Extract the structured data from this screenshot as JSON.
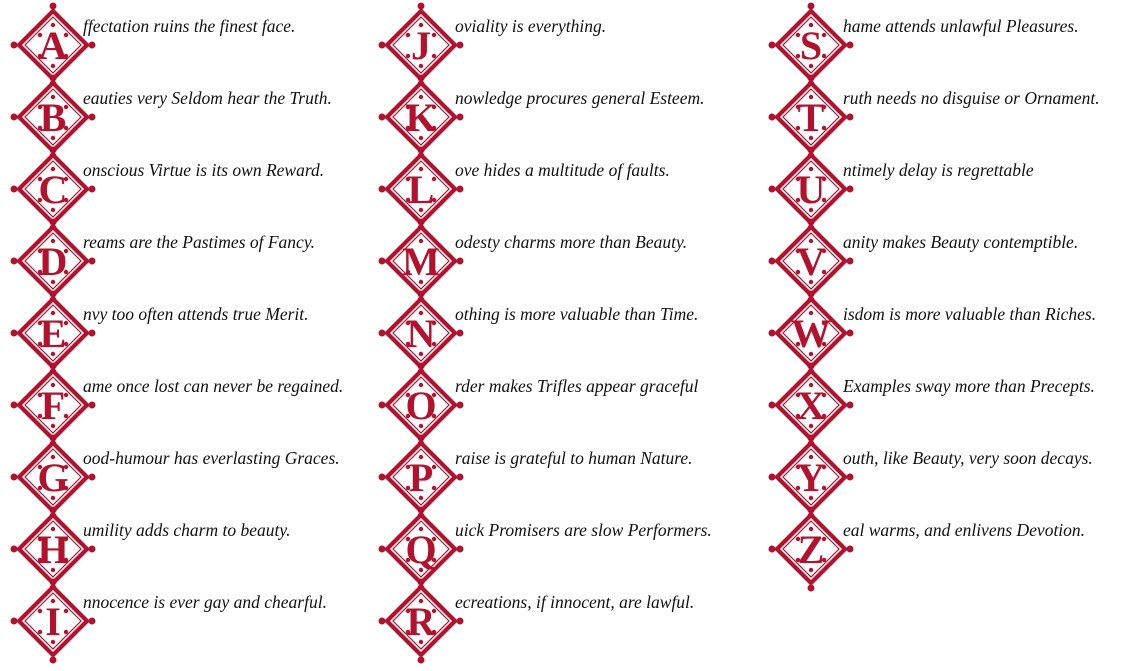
{
  "columns": [
    {
      "entries": [
        {
          "initial": "A",
          "text": "ffectation ruins the finest face."
        },
        {
          "initial": "B",
          "text": "eauties very Seldom hear the Truth."
        },
        {
          "initial": "C",
          "text": "onscious Virtue is its own Reward."
        },
        {
          "initial": "D",
          "text": "reams are the Pastimes of Fancy."
        },
        {
          "initial": "E",
          "text": "nvy too often attends true Merit."
        },
        {
          "initial": "F",
          "text": "ame once lost can never be regained."
        },
        {
          "initial": "G",
          "text": "ood-humour has everlasting Graces."
        },
        {
          "initial": "H",
          "text": "umility adds charm to beauty."
        },
        {
          "initial": "I",
          "text": "nnocence is ever gay and chearful."
        }
      ]
    },
    {
      "entries": [
        {
          "initial": "J",
          "text": "oviality is everything."
        },
        {
          "initial": "K",
          "text": "nowledge procures general Esteem."
        },
        {
          "initial": "L",
          "text": "ove hides a multitude of faults."
        },
        {
          "initial": "M",
          "text": "odesty charms more than Beauty."
        },
        {
          "initial": "N",
          "text": "othing is more valuable than Time."
        },
        {
          "initial": "O",
          "text": "rder makes Trifles appear graceful"
        },
        {
          "initial": "P",
          "text": "raise is grateful to human Nature."
        },
        {
          "initial": "Q",
          "text": "uick Promisers are slow Performers."
        },
        {
          "initial": "R",
          "text": "ecreations, if innocent, are lawful."
        }
      ]
    },
    {
      "entries": [
        {
          "initial": "S",
          "text": "hame attends unlawful Pleasures."
        },
        {
          "initial": "T",
          "text": "ruth needs no disguise or Ornament."
        },
        {
          "initial": "U",
          "text": "ntimely delay is regrettable"
        },
        {
          "initial": "V",
          "text": "anity makes Beauty contemptible."
        },
        {
          "initial": "W",
          "text": "isdom is more valuable than Riches."
        },
        {
          "initial": "X",
          "text": "Examples sway more than Precepts."
        },
        {
          "initial": "Y",
          "text": "outh, like Beauty, very soon decays."
        },
        {
          "initial": "Z",
          "text": "eal warms, and enlivens Devotion."
        }
      ]
    }
  ]
}
